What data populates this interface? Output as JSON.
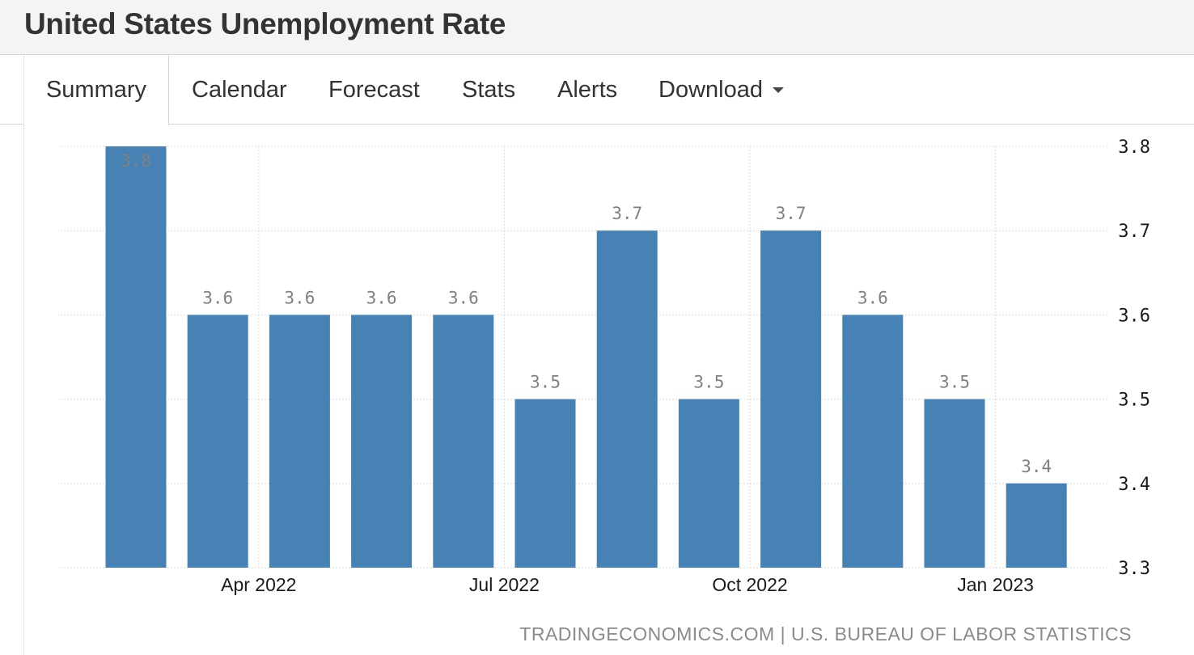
{
  "page": {
    "title": "United States Unemployment Rate"
  },
  "tabs": [
    {
      "label": "Summary",
      "active": true
    },
    {
      "label": "Calendar",
      "active": false
    },
    {
      "label": "Forecast",
      "active": false
    },
    {
      "label": "Stats",
      "active": false
    },
    {
      "label": "Alerts",
      "active": false
    },
    {
      "label": "Download",
      "active": false,
      "has_dropdown": true,
      "icon": "caret-down-icon"
    }
  ],
  "chart_data": {
    "type": "bar",
    "title": "",
    "xlabel": "",
    "ylabel": "",
    "ylim": [
      3.3,
      3.8
    ],
    "y_ticks": [
      "3.8",
      "3.7",
      "3.6",
      "3.5",
      "3.4",
      "3.3"
    ],
    "y_axis_position": "right",
    "x_tick_labels": [
      "Apr 2022",
      "Jul 2022",
      "Oct 2022",
      "Jan 2023"
    ],
    "grid": true,
    "series": [
      {
        "values": [
          3.8,
          3.6,
          3.6,
          3.6,
          3.6,
          3.5,
          3.7,
          3.5,
          3.7,
          3.6,
          3.5,
          3.4
        ],
        "data_labels": [
          "3.8",
          "3.6",
          "3.6",
          "3.6",
          "3.6",
          "3.5",
          "3.7",
          "3.5",
          "3.7",
          "3.6",
          "3.5",
          "3.4"
        ],
        "color": "#4682b4"
      }
    ]
  },
  "source": {
    "text": "TRADINGECONOMICS.COM | U.S. BUREAU OF LABOR STATISTICS"
  },
  "colors": {
    "bar": "#4682b4",
    "data_label": "#808080",
    "grid": "#dcdcdc",
    "axis_label": "#1a1a1a",
    "header_bg": "#f4f4f4"
  }
}
